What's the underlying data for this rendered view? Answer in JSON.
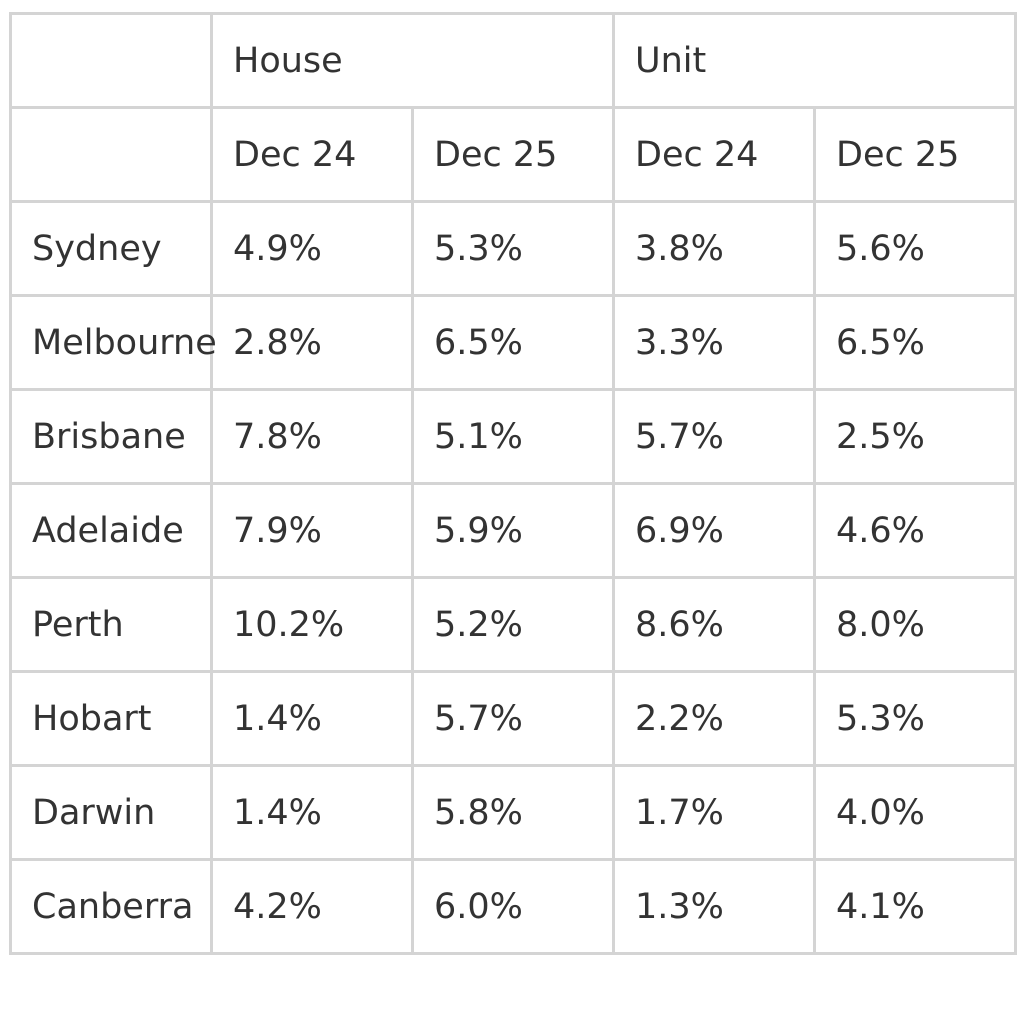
{
  "header": {
    "groups": [
      "House",
      "Unit"
    ],
    "periods": [
      "Dec 24",
      "Dec 25",
      "Dec 24",
      "Dec 25"
    ]
  },
  "table": {
    "rows": [
      {
        "city": "Sydney",
        "values": [
          "4.9%",
          "5.3%",
          "3.8%",
          "5.6%"
        ]
      },
      {
        "city": "Melbourne",
        "values": [
          "2.8%",
          "6.5%",
          "3.3%",
          "6.5%"
        ]
      },
      {
        "city": "Brisbane",
        "values": [
          "7.8%",
          "5.1%",
          "5.7%",
          "2.5%"
        ]
      },
      {
        "city": "Adelaide",
        "values": [
          "7.9%",
          "5.9%",
          "6.9%",
          "4.6%"
        ]
      },
      {
        "city": "Perth",
        "values": [
          "10.2%",
          "5.2%",
          "8.6%",
          "8.0%"
        ]
      },
      {
        "city": "Hobart",
        "values": [
          "1.4%",
          "5.7%",
          "2.2%",
          "5.3%"
        ]
      },
      {
        "city": "Darwin",
        "values": [
          "1.4%",
          "5.8%",
          "1.7%",
          "4.0%"
        ]
      },
      {
        "city": "Canberra",
        "values": [
          "4.2%",
          "6.0%",
          "1.3%",
          "4.1%"
        ]
      }
    ]
  }
}
